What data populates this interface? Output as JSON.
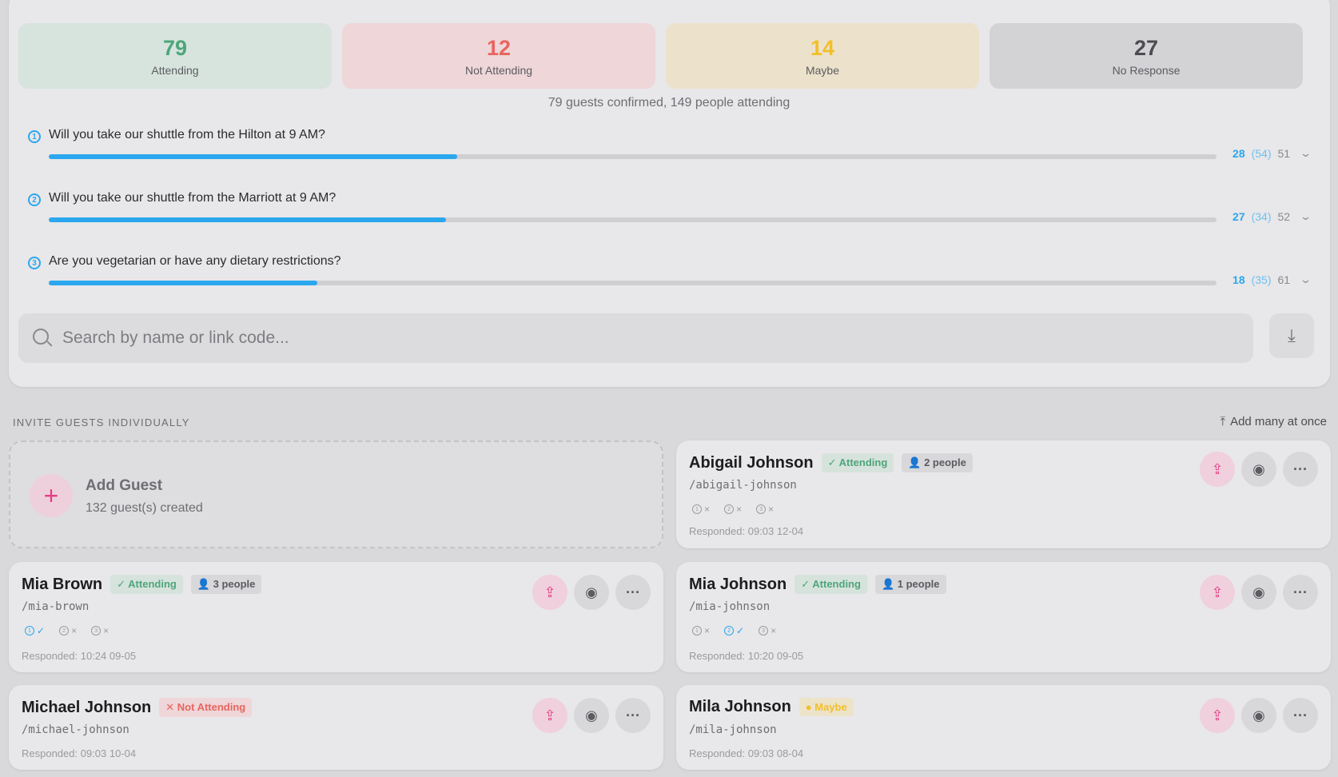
{
  "stats": [
    {
      "count": "79",
      "label": "Attending"
    },
    {
      "count": "12",
      "label": "Not Attending"
    },
    {
      "count": "14",
      "label": "Maybe"
    },
    {
      "count": "27",
      "label": "No Response"
    }
  ],
  "summary": "79 guests confirmed, 149 people attending",
  "questions": [
    {
      "number": "1",
      "text": "Will you take our shuttle from the Hilton at 9 AM?",
      "yes": "28",
      "yes_people": "(54)",
      "no": "51",
      "progress": 0.35
    },
    {
      "number": "2",
      "text": "Will you take our shuttle from the Marriott at 9 AM?",
      "yes": "27",
      "yes_people": "(34)",
      "no": "52",
      "progress": 0.34
    },
    {
      "number": "3",
      "text": "Are you vegetarian or have any dietary restrictions?",
      "yes": "18",
      "yes_people": "(35)",
      "no": "61",
      "progress": 0.23
    }
  ],
  "search": {
    "placeholder": "Search by name or link code..."
  },
  "section": {
    "title": "INVITE GUESTS INDIVIDUALLY",
    "add_many": "Add many at once"
  },
  "add_guest": {
    "title": "Add Guest",
    "subtitle": "132 guest(s) created"
  },
  "guests": [
    {
      "name": "Abigail Johnson",
      "status": "Attending",
      "people": "2 people",
      "slug": "/abigail-johnson",
      "answers": [
        "×",
        "×",
        "×"
      ],
      "responded": "Responded: 09:03 12-04"
    },
    {
      "name": "Mia Brown",
      "status": "Attending",
      "people": "3 people",
      "slug": "/mia-brown",
      "answers": [
        "✓",
        "×",
        "×"
      ],
      "responded": "Responded: 10:24 09-05"
    },
    {
      "name": "Mia Johnson",
      "status": "Attending",
      "people": "1 people",
      "slug": "/mia-johnson",
      "answers": [
        "×",
        "✓",
        "×"
      ],
      "responded": "Responded: 10:20 09-05"
    },
    {
      "name": "Michael Johnson",
      "status": "Not Attending",
      "slug": "/michael-johnson",
      "responded": "Responded: 09:03 10-04"
    },
    {
      "name": "Mila Johnson",
      "status": "Maybe",
      "slug": "/mila-johnson",
      "responded": "Responded: 09:03 08-04"
    }
  ],
  "icons": {
    "check": "✓",
    "cross": "✕",
    "person": "👤",
    "share": "⇪",
    "view": "◉",
    "more": "···",
    "download": "⤓",
    "upload": "⤒",
    "chevron": "⌄",
    "plus": "+"
  },
  "colors": {
    "accent": "#2ba7ef",
    "attending": "#4ea57a",
    "not_attending": "#e8655f",
    "maybe": "#f2bf29",
    "brand_pink": "#e43f86"
  }
}
